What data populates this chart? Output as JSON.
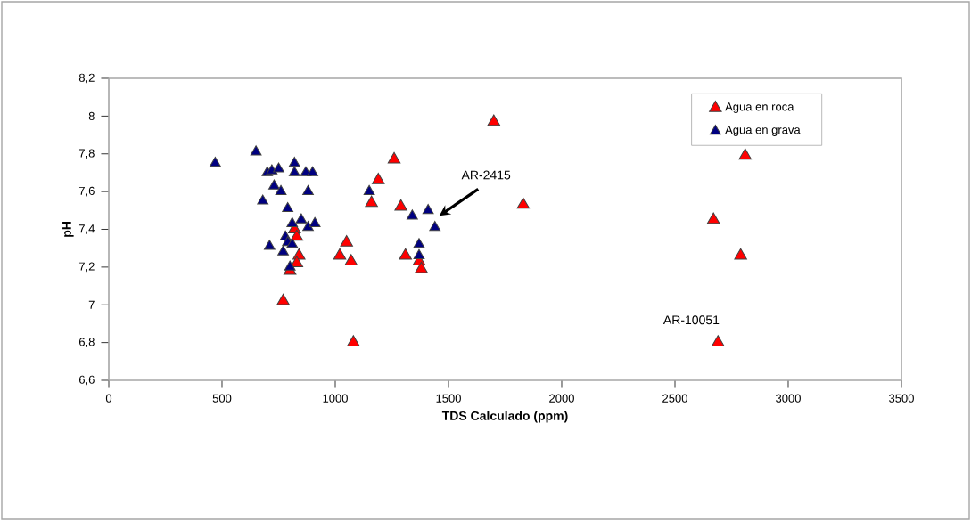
{
  "chart_data": {
    "type": "scatter",
    "xlabel": "TDS Calculado (ppm)",
    "ylabel": "pH",
    "xlim": [
      0,
      3500
    ],
    "xticks": [
      0,
      500,
      1000,
      1500,
      2000,
      2500,
      3000,
      3500
    ],
    "ylim": [
      6.6,
      8.2
    ],
    "yticks": [
      {
        "value": 6.6,
        "label": "6,6"
      },
      {
        "value": 6.8,
        "label": "6,8"
      },
      {
        "value": 7.0,
        "label": "7"
      },
      {
        "value": 7.2,
        "label": "7,2"
      },
      {
        "value": 7.4,
        "label": "7,4"
      },
      {
        "value": 7.6,
        "label": "7,6"
      },
      {
        "value": 7.8,
        "label": "7,8"
      },
      {
        "value": 8.0,
        "label": "8"
      },
      {
        "value": 8.2,
        "label": "8,2"
      }
    ],
    "grid": false,
    "legend": "top right",
    "marker": "triangle",
    "series": [
      {
        "name": "Agua en roca",
        "color": "#ff0000",
        "x": [
          1700,
          2810,
          1260,
          1190,
          1160,
          1290,
          1830,
          2670,
          2790,
          1050,
          1020,
          1070,
          1310,
          1370,
          1380,
          1080,
          2690,
          770,
          820,
          830,
          840,
          830,
          800
        ],
        "values": [
          7.97,
          7.79,
          7.77,
          7.66,
          7.54,
          7.52,
          7.53,
          7.45,
          7.26,
          7.33,
          7.26,
          7.23,
          7.26,
          7.23,
          7.19,
          6.8,
          6.8,
          7.02,
          7.4,
          7.36,
          7.26,
          7.22,
          7.18
        ]
      },
      {
        "name": "Agua en grava",
        "color": "#000080",
        "x": [
          470,
          650,
          700,
          720,
          750,
          730,
          760,
          680,
          820,
          820,
          870,
          900,
          880,
          790,
          810,
          850,
          880,
          910,
          780,
          790,
          810,
          770,
          710,
          800,
          1150,
          1410,
          1340,
          1440,
          1370,
          1370
        ],
        "values": [
          7.75,
          7.81,
          7.7,
          7.71,
          7.72,
          7.63,
          7.6,
          7.55,
          7.75,
          7.7,
          7.7,
          7.7,
          7.6,
          7.51,
          7.43,
          7.45,
          7.41,
          7.43,
          7.36,
          7.33,
          7.32,
          7.28,
          7.31,
          7.2,
          7.6,
          7.5,
          7.47,
          7.41,
          7.32,
          7.26
        ]
      }
    ],
    "annotations": [
      "AR-2415",
      "AR-10051"
    ]
  }
}
